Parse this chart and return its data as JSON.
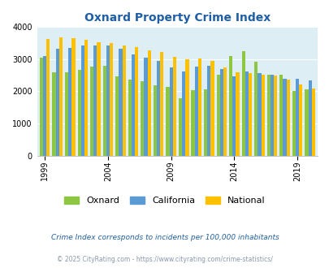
{
  "title": "Oxnard Property Crime Index",
  "years": [
    1999,
    2000,
    2001,
    2002,
    2003,
    2004,
    2005,
    2006,
    2007,
    2008,
    2009,
    2010,
    2011,
    2012,
    2013,
    2014,
    2015,
    2016,
    2017,
    2018,
    2019,
    2020
  ],
  "oxnard": [
    3040,
    2590,
    2600,
    2660,
    2760,
    2780,
    2450,
    2350,
    2300,
    2190,
    2130,
    1770,
    2040,
    2050,
    2500,
    3100,
    3240,
    2920,
    2520,
    2500,
    2010,
    2050
  ],
  "california": [
    3100,
    3310,
    3340,
    3420,
    3430,
    3430,
    3310,
    3150,
    3040,
    2950,
    2740,
    2620,
    2760,
    2790,
    2680,
    2460,
    2620,
    2560,
    2510,
    2380,
    2380,
    2340
  ],
  "national": [
    3620,
    3660,
    3650,
    3600,
    3510,
    3500,
    3410,
    3360,
    3260,
    3230,
    3060,
    2990,
    3010,
    2930,
    2730,
    2600,
    2570,
    2510,
    2490,
    2360,
    2220,
    2080
  ],
  "bar_colors": {
    "oxnard": "#8dc640",
    "california": "#5b9bd5",
    "national": "#ffc000"
  },
  "bg_color": "#deeef5",
  "ylim": [
    0,
    4000
  ],
  "yticks": [
    0,
    1000,
    2000,
    3000,
    4000
  ],
  "xlabel_ticks": [
    1999,
    2004,
    2009,
    2014,
    2019
  ],
  "title_color": "#1f5fa6",
  "title_fontsize": 10,
  "legend_labels": [
    "Oxnard",
    "California",
    "National"
  ],
  "footnote1": "Crime Index corresponds to incidents per 100,000 inhabitants",
  "footnote2": "© 2025 CityRating.com - https://www.cityrating.com/crime-statistics/",
  "footnote1_color": "#2060a0",
  "footnote2_color": "#8899aa"
}
